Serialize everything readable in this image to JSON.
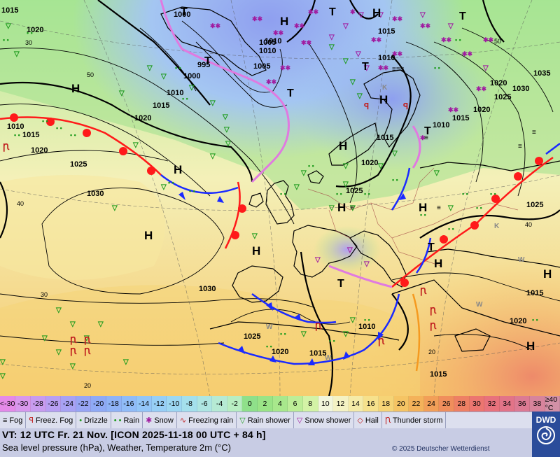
{
  "map": {
    "lows": [
      {
        "symbol": "T"
      },
      {
        "symbol": "T"
      },
      {
        "symbol": "T"
      },
      {
        "symbol": "T"
      },
      {
        "symbol": "T"
      },
      {
        "symbol": "T"
      },
      {
        "symbol": "T"
      },
      {
        "symbol": "T"
      },
      {
        "symbol": "T"
      }
    ],
    "highs": [
      {
        "symbol": "H"
      },
      {
        "symbol": "H"
      },
      {
        "symbol": "H"
      },
      {
        "symbol": "H"
      },
      {
        "symbol": "H"
      },
      {
        "symbol": "H"
      },
      {
        "symbol": "H"
      },
      {
        "symbol": "H"
      },
      {
        "symbol": "H"
      },
      {
        "symbol": "H"
      },
      {
        "symbol": "H"
      },
      {
        "symbol": "H"
      },
      {
        "symbol": "H"
      }
    ],
    "pressure_labels": [
      "1015",
      "1020",
      "1000",
      "1005",
      "1015",
      "995",
      "1010",
      "1005",
      "1000",
      "1010",
      "1015",
      "1020",
      "1015",
      "1010",
      "1035",
      "1030",
      "1025",
      "1020",
      "1015",
      "1010",
      "1010",
      "1015",
      "1020",
      "1025",
      "1025",
      "1030",
      "1030",
      "1025",
      "1020",
      "1015",
      "1020",
      "1025",
      "1015",
      "1020",
      "1010",
      "1020",
      "1015",
      "1010"
    ],
    "temp_labels": [
      "30",
      "50",
      "40",
      "30",
      "20",
      "20",
      "40",
      "50"
    ]
  },
  "scale": {
    "cells": [
      {
        "label": "<-30",
        "color": "#e58ae8"
      },
      {
        "label": "-30",
        "color": "#d998ec"
      },
      {
        "label": "-28",
        "color": "#c89cef"
      },
      {
        "label": "-26",
        "color": "#b89ff2"
      },
      {
        "label": "-24",
        "color": "#a8a2f4"
      },
      {
        "label": "-22",
        "color": "#98a5f5"
      },
      {
        "label": "-20",
        "color": "#8faaf6"
      },
      {
        "label": "-18",
        "color": "#8fb3f7"
      },
      {
        "label": "-16",
        "color": "#90bcf8"
      },
      {
        "label": "-14",
        "color": "#93c6f8"
      },
      {
        "label": "-12",
        "color": "#97cff6"
      },
      {
        "label": "-10",
        "color": "#9dd8f2"
      },
      {
        "label": "-8",
        "color": "#a4e0ec"
      },
      {
        "label": "-6",
        "color": "#aee6e2"
      },
      {
        "label": "-4",
        "color": "#b6ead4"
      },
      {
        "label": "-2",
        "color": "#b8eec2"
      },
      {
        "label": "0",
        "color": "#8fe08a"
      },
      {
        "label": "2",
        "color": "#9ae486"
      },
      {
        "label": "4",
        "color": "#a8e88c"
      },
      {
        "label": "6",
        "color": "#bdee98"
      },
      {
        "label": "8",
        "color": "#d3f3a6"
      },
      {
        "label": "10",
        "color": "#f2f6dc"
      },
      {
        "label": "12",
        "color": "#f4f2c4"
      },
      {
        "label": "14",
        "color": "#f5eba8"
      },
      {
        "label": "16",
        "color": "#f6e18c"
      },
      {
        "label": "18",
        "color": "#f6d476"
      },
      {
        "label": "20",
        "color": "#f5c464"
      },
      {
        "label": "22",
        "color": "#f4b25a"
      },
      {
        "label": "24",
        "color": "#f29f58"
      },
      {
        "label": "26",
        "color": "#f08e5c"
      },
      {
        "label": "28",
        "color": "#ee8064"
      },
      {
        "label": "30",
        "color": "#ec7670"
      },
      {
        "label": "32",
        "color": "#e8727c"
      },
      {
        "label": "34",
        "color": "#e27488"
      },
      {
        "label": "36",
        "color": "#dc7a93"
      },
      {
        "label": "38",
        "color": "#d7849c"
      },
      {
        "label": "≥40 °C",
        "color": "#d290a6"
      }
    ]
  },
  "legend": [
    {
      "icon": "≡",
      "icon_name": "fog-icon",
      "label": "Fog",
      "color": "#000"
    },
    {
      "icon": "ꟼ",
      "icon_name": "freezing-fog-icon",
      "label": "Freez. Fog",
      "color": "#c02020"
    },
    {
      "icon": "•",
      "icon_name": "drizzle-icon",
      "label": "Drizzle",
      "color": "#1a9a1a"
    },
    {
      "icon": "• •",
      "icon_name": "rain-icon",
      "label": "Rain",
      "color": "#1a9a1a"
    },
    {
      "icon": "✱",
      "icon_name": "snow-icon",
      "label": "Snow",
      "color": "#a01ca0"
    },
    {
      "icon": "∿",
      "icon_name": "freezing-rain-icon",
      "label": "Freezing rain",
      "color": "#c02020"
    },
    {
      "icon": "▽",
      "icon_name": "rain-shower-icon",
      "label": "Rain shower",
      "color": "#1a9a1a"
    },
    {
      "icon": "▽",
      "icon_name": "snow-shower-icon",
      "label": "Snow shower",
      "color": "#a01ca0"
    },
    {
      "icon": "◇",
      "icon_name": "hail-icon",
      "label": "Hail",
      "color": "#c02020"
    },
    {
      "icon": "Ꞃ",
      "icon_name": "thunderstorm-icon",
      "label": "Thunder storm",
      "color": "#c02020"
    }
  ],
  "info": {
    "valid_time": "VT: 12 UTC Fr.  21 Nov. [ICON 2025-11-18  00 UTC + 84 h]",
    "description": "Sea level pressure (hPa), Weather, Temperature 2m (°C)",
    "copyright": "© 2025 Deutscher Wetterdienst"
  },
  "logo": {
    "text": "DWD"
  }
}
